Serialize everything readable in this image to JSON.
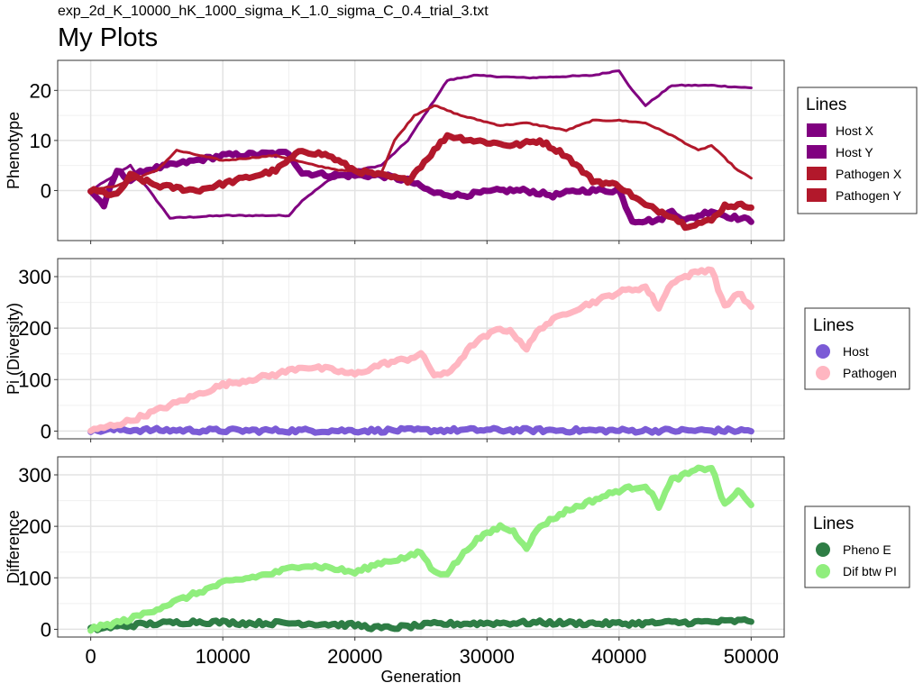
{
  "subtitle": "exp_2d_K_10000_hK_1000_sigma_K_1.0_sigma_C_0.4_trial_3.txt",
  "title": "My Plots",
  "chart_data": [
    {
      "type": "line",
      "panel": "top",
      "ylabel": "Phenotype",
      "xlabel": "",
      "xlim": [
        -2500,
        52500
      ],
      "ylim": [
        -10,
        26
      ],
      "yticks": [
        0,
        10,
        20
      ],
      "xticks": [
        0,
        10000,
        20000,
        30000,
        40000,
        50000
      ],
      "legend": {
        "title": "Lines",
        "placement": "right",
        "symbol": "square"
      },
      "series": [
        {
          "name": "Host X",
          "color": "#800080",
          "thick": false,
          "points": [
            [
              0,
              0
            ],
            [
              3000,
              5
            ],
            [
              6000,
              -5.5
            ],
            [
              10000,
              -5
            ],
            [
              15000,
              -5
            ],
            [
              16000,
              -2
            ],
            [
              18000,
              2
            ],
            [
              20000,
              4
            ],
            [
              22000,
              5
            ],
            [
              24000,
              10
            ],
            [
              26000,
              18
            ],
            [
              27000,
              22
            ],
            [
              29000,
              23
            ],
            [
              33000,
              22.5
            ],
            [
              38000,
              23
            ],
            [
              40000,
              24
            ],
            [
              41000,
              20
            ],
            [
              42000,
              17
            ],
            [
              43000,
              19
            ],
            [
              44000,
              21
            ],
            [
              47000,
              21
            ],
            [
              50000,
              20.5
            ]
          ]
        },
        {
          "name": "Host Y",
          "color": "#800080",
          "thick": true,
          "points": [
            [
              0,
              0
            ],
            [
              1000,
              -3
            ],
            [
              2000,
              4
            ],
            [
              3000,
              2
            ],
            [
              4000,
              4
            ],
            [
              6000,
              5
            ],
            [
              10000,
              7
            ],
            [
              15000,
              7.5
            ],
            [
              16000,
              3.5
            ],
            [
              19000,
              3
            ],
            [
              22000,
              3
            ],
            [
              24000,
              2
            ],
            [
              26000,
              -0.5
            ],
            [
              28000,
              -1
            ],
            [
              31000,
              0
            ],
            [
              33000,
              0
            ],
            [
              35000,
              -1
            ],
            [
              37000,
              0
            ],
            [
              39000,
              0
            ],
            [
              40000,
              0
            ],
            [
              41000,
              -6
            ],
            [
              43000,
              -6
            ],
            [
              44000,
              -4
            ],
            [
              45000,
              -6
            ],
            [
              47000,
              -4
            ],
            [
              48000,
              -5
            ],
            [
              50000,
              -6
            ]
          ]
        },
        {
          "name": "Pathogen X",
          "color": "#b2182b",
          "thick": false,
          "points": [
            [
              0,
              0
            ],
            [
              2000,
              1
            ],
            [
              5000,
              4
            ],
            [
              6500,
              8
            ],
            [
              10000,
              6
            ],
            [
              14000,
              7
            ],
            [
              17000,
              5
            ],
            [
              19000,
              4
            ],
            [
              22000,
              3.5
            ],
            [
              23000,
              10
            ],
            [
              24500,
              15
            ],
            [
              26000,
              17
            ],
            [
              28000,
              15
            ],
            [
              31000,
              13
            ],
            [
              33000,
              13.5
            ],
            [
              36000,
              12
            ],
            [
              38000,
              14
            ],
            [
              40000,
              14
            ],
            [
              42000,
              13.5
            ],
            [
              44000,
              11
            ],
            [
              46000,
              8
            ],
            [
              47000,
              9
            ],
            [
              49000,
              4
            ],
            [
              50000,
              2.5
            ]
          ]
        },
        {
          "name": "Pathogen Y",
          "color": "#b2182b",
          "thick": true,
          "points": [
            [
              0,
              0
            ],
            [
              2000,
              -1
            ],
            [
              3000,
              3
            ],
            [
              5000,
              1
            ],
            [
              8000,
              0
            ],
            [
              11000,
              2
            ],
            [
              14000,
              4
            ],
            [
              16000,
              8
            ],
            [
              18000,
              7
            ],
            [
              20000,
              4
            ],
            [
              22000,
              3
            ],
            [
              24000,
              2
            ],
            [
              25000,
              5
            ],
            [
              27000,
              11
            ],
            [
              29000,
              10
            ],
            [
              32000,
              9
            ],
            [
              34000,
              10
            ],
            [
              36000,
              7
            ],
            [
              38000,
              2
            ],
            [
              40000,
              1
            ],
            [
              42000,
              -3
            ],
            [
              44000,
              -5
            ],
            [
              45000,
              -7
            ],
            [
              47000,
              -6
            ],
            [
              48000,
              -3
            ],
            [
              50000,
              -3
            ]
          ]
        }
      ]
    },
    {
      "type": "line",
      "panel": "middle",
      "ylabel": "Pi (Diversity)",
      "xlabel": "",
      "xlim": [
        -2500,
        52500
      ],
      "ylim": [
        -15,
        335
      ],
      "yticks": [
        0,
        100,
        200,
        300
      ],
      "xticks": [
        0,
        10000,
        20000,
        30000,
        40000,
        50000
      ],
      "legend": {
        "title": "Lines",
        "placement": "right",
        "symbol": "circle"
      },
      "series": [
        {
          "name": "Host",
          "color": "#7b5bd6",
          "thick": true,
          "points": [
            [
              0,
              0
            ],
            [
              2000,
              3
            ],
            [
              4000,
              2
            ],
            [
              10000,
              1
            ],
            [
              20000,
              1
            ],
            [
              30000,
              2
            ],
            [
              40000,
              1
            ],
            [
              50000,
              1
            ]
          ]
        },
        {
          "name": "Pathogen",
          "color": "#ffb6c1",
          "thick": true,
          "points": [
            [
              0,
              0
            ],
            [
              3000,
              20
            ],
            [
              6000,
              50
            ],
            [
              10000,
              90
            ],
            [
              14000,
              110
            ],
            [
              16000,
              125
            ],
            [
              18000,
              120
            ],
            [
              20000,
              110
            ],
            [
              22000,
              130
            ],
            [
              24000,
              140
            ],
            [
              25000,
              150
            ],
            [
              26000,
              110
            ],
            [
              27000,
              110
            ],
            [
              28000,
              140
            ],
            [
              29000,
              170
            ],
            [
              31000,
              200
            ],
            [
              32000,
              190
            ],
            [
              33000,
              160
            ],
            [
              34000,
              200
            ],
            [
              36000,
              230
            ],
            [
              38000,
              250
            ],
            [
              40000,
              270
            ],
            [
              42000,
              280
            ],
            [
              43000,
              240
            ],
            [
              44000,
              290
            ],
            [
              46000,
              310
            ],
            [
              47000,
              315
            ],
            [
              48000,
              240
            ],
            [
              49000,
              270
            ],
            [
              50000,
              240
            ]
          ]
        }
      ]
    },
    {
      "type": "line",
      "panel": "bottom",
      "ylabel": "Difference",
      "xlabel": "Generation",
      "xlim": [
        -2500,
        52500
      ],
      "ylim": [
        -15,
        335
      ],
      "yticks": [
        0,
        100,
        200,
        300
      ],
      "xticks": [
        0,
        10000,
        20000,
        30000,
        40000,
        50000
      ],
      "xticklabels": [
        "0",
        "10000",
        "20000",
        "30000",
        "40000",
        "50000"
      ],
      "legend": {
        "title": "Lines",
        "placement": "right",
        "symbol": "circle"
      },
      "series": [
        {
          "name": "Pheno E",
          "color": "#2e7d45",
          "thick": true,
          "points": [
            [
              0,
              0
            ],
            [
              4000,
              10
            ],
            [
              8000,
              15
            ],
            [
              12000,
              12
            ],
            [
              16000,
              12
            ],
            [
              20000,
              8
            ],
            [
              22000,
              2
            ],
            [
              24000,
              5
            ],
            [
              26000,
              10
            ],
            [
              30000,
              12
            ],
            [
              34000,
              13
            ],
            [
              40000,
              11
            ],
            [
              44000,
              13
            ],
            [
              48000,
              15
            ],
            [
              50000,
              17
            ]
          ]
        },
        {
          "name": "Dif btw PI",
          "color": "#90ee7d",
          "thick": true,
          "points": [
            [
              0,
              0
            ],
            [
              3000,
              20
            ],
            [
              6000,
              50
            ],
            [
              10000,
              90
            ],
            [
              14000,
              110
            ],
            [
              16000,
              125
            ],
            [
              18000,
              120
            ],
            [
              20000,
              110
            ],
            [
              22000,
              130
            ],
            [
              24000,
              140
            ],
            [
              25000,
              150
            ],
            [
              26000,
              110
            ],
            [
              27000,
              110
            ],
            [
              28000,
              140
            ],
            [
              29000,
              170
            ],
            [
              31000,
              200
            ],
            [
              32000,
              190
            ],
            [
              33000,
              160
            ],
            [
              34000,
              200
            ],
            [
              36000,
              230
            ],
            [
              38000,
              250
            ],
            [
              40000,
              270
            ],
            [
              42000,
              280
            ],
            [
              43000,
              240
            ],
            [
              44000,
              290
            ],
            [
              46000,
              310
            ],
            [
              47000,
              315
            ],
            [
              48000,
              240
            ],
            [
              49000,
              270
            ],
            [
              50000,
              240
            ]
          ]
        }
      ]
    }
  ]
}
